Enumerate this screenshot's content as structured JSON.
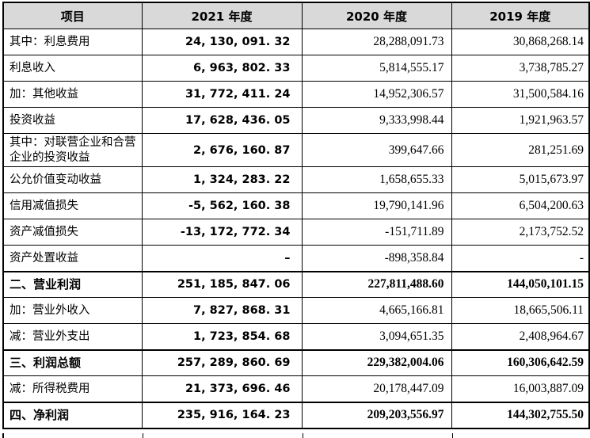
{
  "table": {
    "name": "利润表片段（合并利润表）",
    "columns": [
      {
        "label": "项目"
      },
      {
        "label": "2021 年度"
      },
      {
        "label": "2020 年度"
      },
      {
        "label": "2019 年度"
      }
    ],
    "rows": [
      {
        "label": "其中：利息费用",
        "y2021": "24, 130, 091. 32",
        "y2020": "28,288,091.73",
        "y2019": "30,868,268.14",
        "section": false,
        "tall": false
      },
      {
        "label": "利息收入",
        "y2021": "6, 963, 802. 33",
        "y2020": "5,814,555.17",
        "y2019": "3,738,785.27",
        "section": false,
        "tall": false
      },
      {
        "label": "加：其他收益",
        "y2021": "31, 772, 411. 24",
        "y2020": "14,952,306.57",
        "y2019": "31,500,584.16",
        "section": false,
        "tall": false
      },
      {
        "label": "投资收益",
        "y2021": "17, 628, 436. 05",
        "y2020": "9,333,998.44",
        "y2019": "1,921,963.57",
        "section": false,
        "tall": false
      },
      {
        "label": "其中：对联营企业和合营企业的投资收益",
        "y2021": "2, 676, 160. 87",
        "y2020": "399,647.66",
        "y2019": "281,251.69",
        "section": false,
        "tall": true
      },
      {
        "label": "公允价值变动收益",
        "y2021": "1, 324, 283. 22",
        "y2020": "1,658,655.33",
        "y2019": "5,015,673.97",
        "section": false,
        "tall": false
      },
      {
        "label": "信用减值损失",
        "y2021": "-5, 562, 160. 38",
        "y2020": "19,790,141.96",
        "y2019": "6,504,200.63",
        "section": false,
        "tall": false
      },
      {
        "label": "资产减值损失",
        "y2021": "-13, 172, 772. 34",
        "y2020": "-151,711.89",
        "y2019": "2,173,752.52",
        "section": false,
        "tall": false
      },
      {
        "label": "资产处置收益",
        "y2021": "–",
        "y2020": "-898,358.84",
        "y2019": "-",
        "section": false,
        "tall": false
      },
      {
        "label": "二、营业利润",
        "y2021": "251, 185, 847. 06",
        "y2020": "227,811,488.60",
        "y2019": "144,050,101.15",
        "section": true,
        "tall": false
      },
      {
        "label": "加：营业外收入",
        "y2021": "7, 827, 868. 31",
        "y2020": "4,665,166.81",
        "y2019": "18,665,506.11",
        "section": false,
        "tall": false
      },
      {
        "label": "减：营业外支出",
        "y2021": "1, 723, 854. 68",
        "y2020": "3,094,651.35",
        "y2019": "2,408,964.67",
        "section": false,
        "tall": false
      },
      {
        "label": "三、利润总额",
        "y2021": "257, 289, 860. 69",
        "y2020": "229,382,004.06",
        "y2019": "160,306,642.59",
        "section": true,
        "tall": false
      },
      {
        "label": "减：所得税费用",
        "y2021": "21, 373, 696. 46",
        "y2020": "20,178,447.09",
        "y2019": "16,003,887.09",
        "section": false,
        "tall": false
      },
      {
        "label": "四、净利润",
        "y2021": "235, 916, 164. 23",
        "y2020": "209,203,556.97",
        "y2019": "144,302,755.50",
        "section": true,
        "tall": false
      }
    ],
    "colors": {
      "header_bg": "#d9d9d9",
      "border": "#000000",
      "text": "#000000"
    }
  }
}
